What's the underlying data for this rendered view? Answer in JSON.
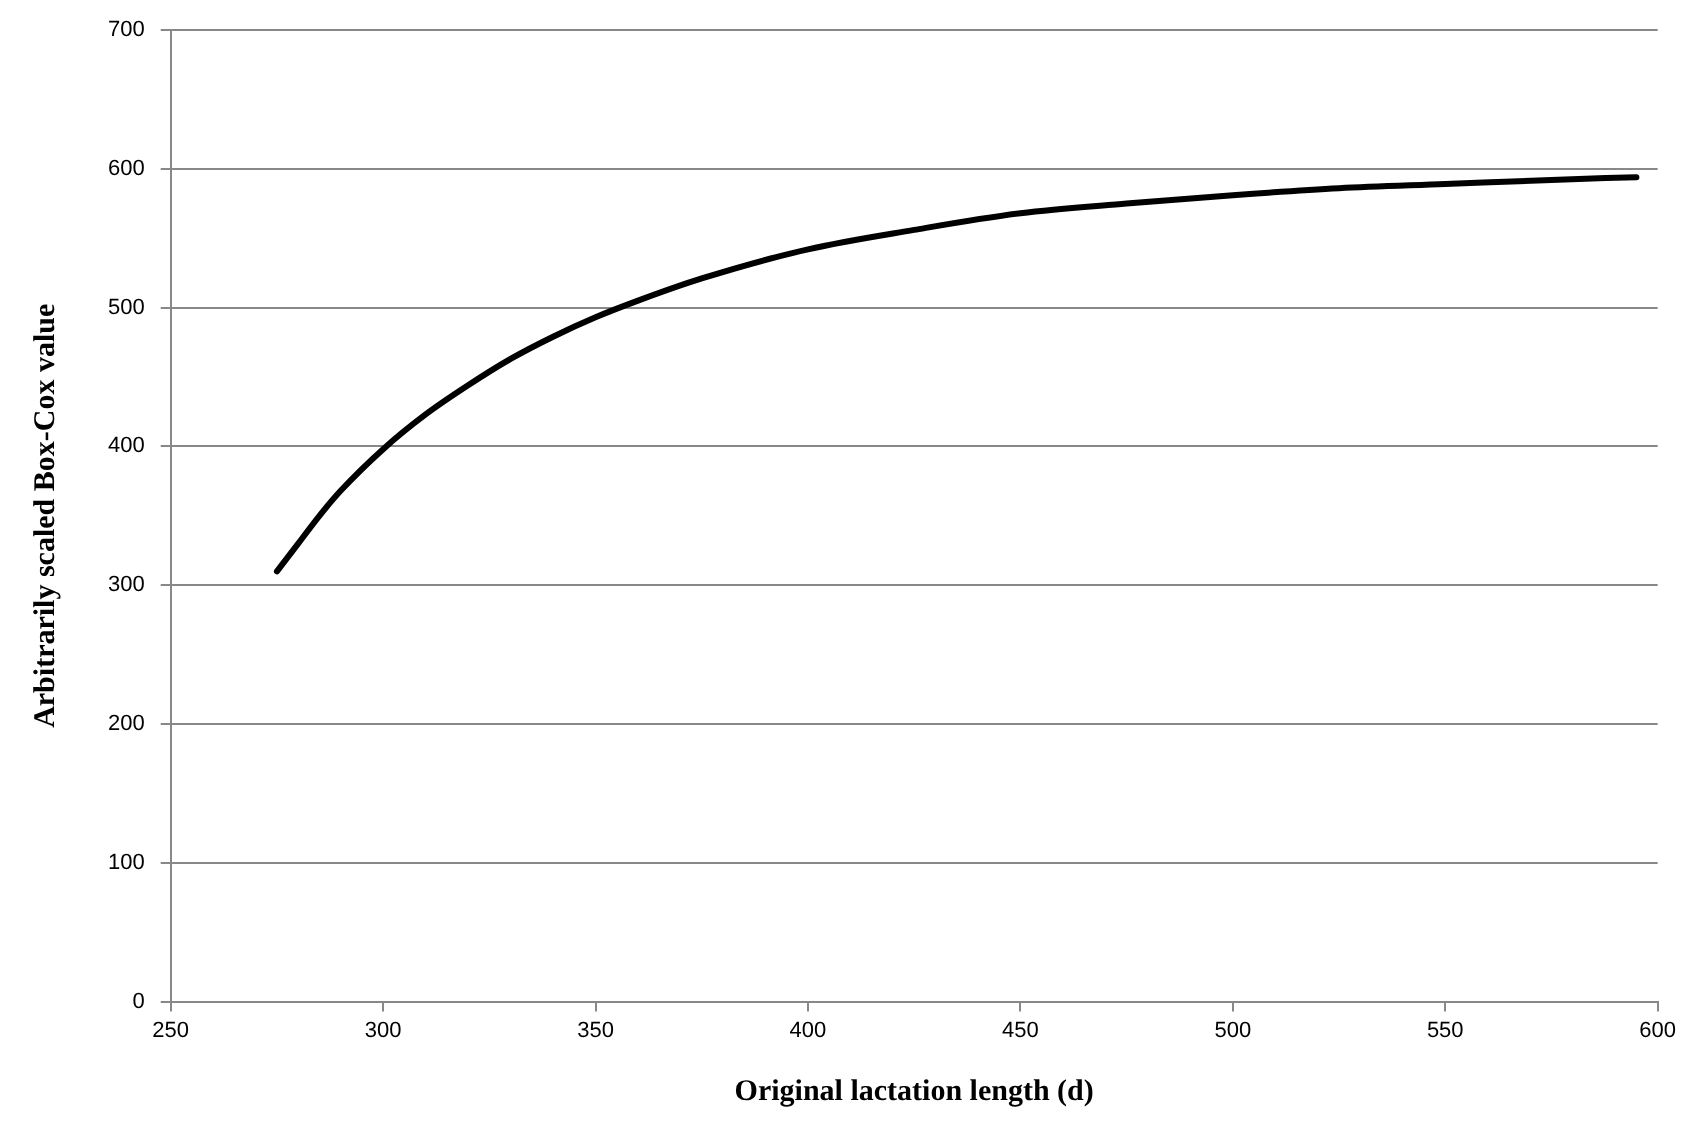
{
  "chart_data": {
    "type": "line",
    "xlabel": "Original lactation length (d)",
    "ylabel": "Arbitrarily scaled Box-Cox value",
    "series": [
      {
        "color": "#000000",
        "x": [
          275,
          280,
          285,
          290,
          300,
          310,
          320,
          330,
          340,
          350,
          360,
          375,
          400,
          425,
          450,
          475,
          500,
          525,
          550,
          575,
          595
        ],
        "values": [
          310,
          330,
          350,
          368,
          398,
          423,
          444,
          463,
          479,
          493,
          505,
          521,
          542,
          556,
          568,
          575,
          581,
          586,
          589,
          592,
          594
        ]
      }
    ],
    "xlim": [
      250,
      600
    ],
    "xticks": [
      250,
      300,
      350,
      400,
      450,
      500,
      550,
      600
    ],
    "ylim": [
      0,
      700
    ],
    "yticks": [
      0,
      100,
      200,
      300,
      400,
      500,
      600,
      700
    ],
    "grid": "y",
    "legend": false,
    "marker": "none",
    "line_style": "solid"
  }
}
